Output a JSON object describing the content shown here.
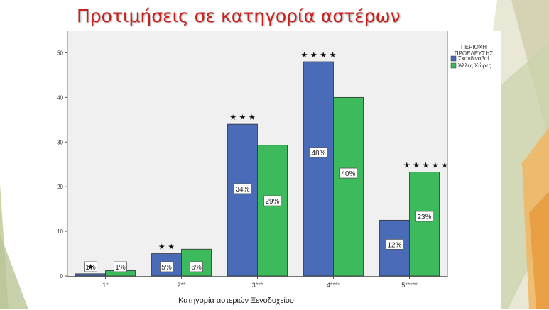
{
  "slide": {
    "title": "Προτιμήσεις σε κατηγορία αστέρων"
  },
  "chart_data": {
    "type": "bar",
    "xlabel": "Κατηγορία αστεριών Ξενοδοχείου",
    "ylabel": "",
    "ylim": [
      0,
      55
    ],
    "yticks": [
      "0",
      "10",
      "20",
      "30",
      "40",
      "50"
    ],
    "ytick_values": [
      0,
      10,
      20,
      30,
      40,
      50
    ],
    "categories": [
      "1*",
      "2**",
      "3***",
      "4****",
      "5*****"
    ],
    "star_marks": [
      "★",
      "★ ★",
      "★ ★ ★",
      "★ ★ ★ ★",
      "★ ★ ★ ★ ★"
    ],
    "legend": {
      "title": "ΠΕΡΙΟΧΗ ΠΡΟΕΛΕΥΣΗΣ",
      "title_lines": [
        "ΠΕΡΙΟΧΗ",
        "ΠΡΟΕΛΕΥΣΗΣ"
      ],
      "position": "top-right"
    },
    "series": [
      {
        "name": "Σκανδιναβοί",
        "color": "#4a6cb8",
        "values": [
          0.5,
          5,
          34,
          48,
          12.5
        ],
        "labels": [
          "1%",
          "5%",
          "34%",
          "48%",
          "12%"
        ]
      },
      {
        "name": "Άλλες Χώρες",
        "color": "#3dbb5c",
        "values": [
          1.2,
          6,
          29.3,
          40,
          23.3
        ],
        "labels": [
          "1%",
          "6%",
          "29%",
          "40%",
          "23%"
        ]
      }
    ],
    "plot_background": "#f0f0f0",
    "grid": false
  }
}
